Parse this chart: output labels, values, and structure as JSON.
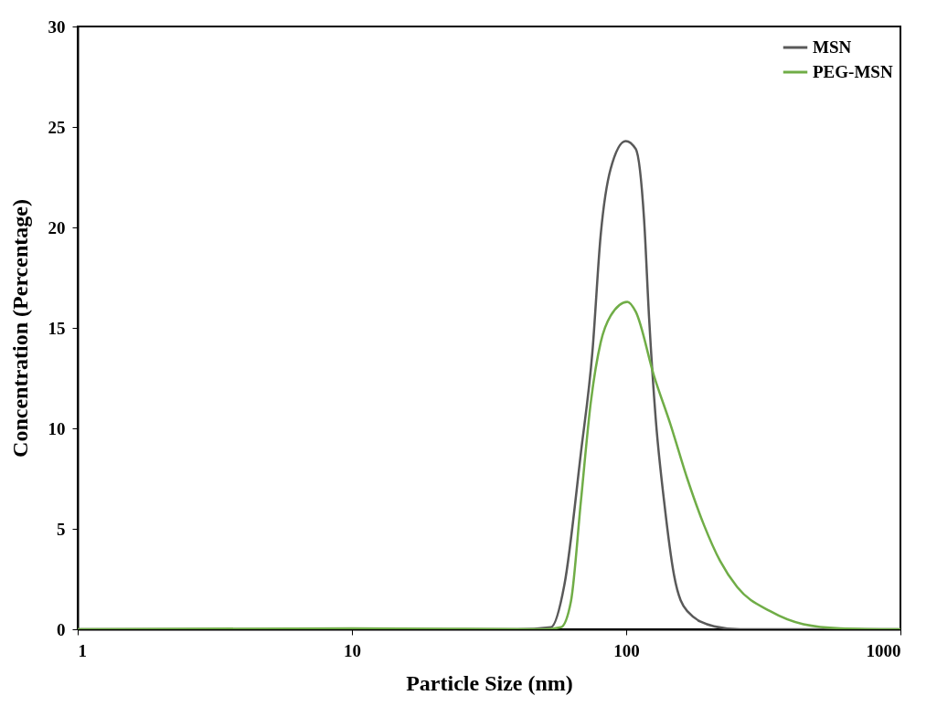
{
  "chart_data": {
    "type": "line",
    "xlabel": "Particle Size (nm)",
    "ylabel": "Concentration (Percentage)",
    "log": "x",
    "xlim": [
      1,
      1000
    ],
    "xticks": [
      1,
      10,
      100,
      1000
    ],
    "ylim": [
      0,
      30
    ],
    "yticks": [
      0,
      5,
      10,
      15,
      20,
      25,
      30
    ],
    "grid": false,
    "legend": "top right",
    "marker": "none",
    "line_style": "solid",
    "series": [
      {
        "name": "MSN",
        "color": "#595959",
        "x": [
          1,
          10,
          40,
          53.2,
          59.5,
          68.4,
          75.3,
          80.7,
          87.7,
          99.6,
          108.4,
          116.2,
          121.2,
          128.1,
          137.4,
          149.4,
          167,
          209,
          260,
          1000
        ],
        "values": [
          0,
          0,
          0,
          0.1,
          2.2,
          8.8,
          13.8,
          19.6,
          22.9,
          24.3,
          23.9,
          20.4,
          15.5,
          10.5,
          6.4,
          2.7,
          0.9,
          0.15,
          0,
          0
        ]
      },
      {
        "name": "PEG-MSN",
        "color": "#70ad47",
        "x": [
          1,
          10,
          50,
          57.8,
          62.9,
          68.4,
          74.3,
          80.8,
          87.7,
          101,
          108.4,
          126.4,
          145,
          167,
          192,
          220,
          254,
          335,
          443,
          603,
          1000
        ],
        "values": [
          0,
          0.05,
          0,
          0.1,
          1.4,
          6.4,
          11.3,
          14.3,
          15.6,
          16.3,
          15.8,
          12.6,
          10.2,
          7.5,
          5.2,
          3.4,
          2.1,
          0.9,
          0.25,
          0.05,
          0
        ]
      }
    ]
  }
}
